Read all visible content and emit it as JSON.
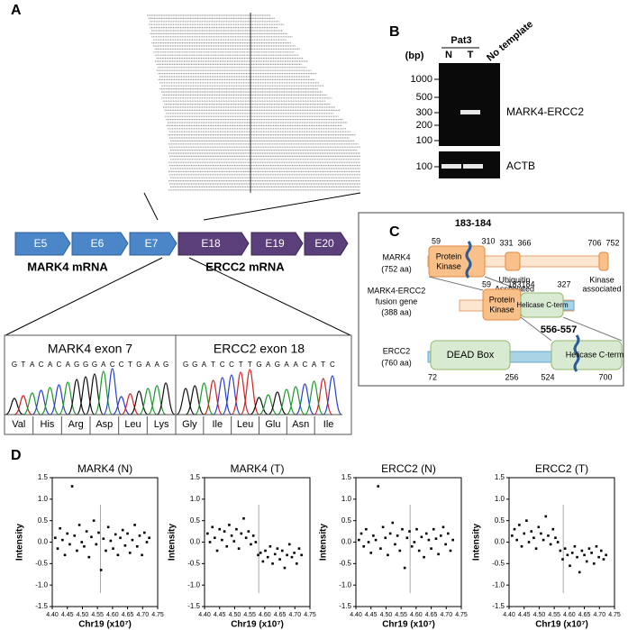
{
  "panel_a": {
    "label": "A",
    "mark4_exons": [
      "E5",
      "E6",
      "E7"
    ],
    "ercc2_exons": [
      "E18",
      "E19",
      "E20"
    ],
    "mark4_mrna": "MARK4 mRNA",
    "ercc2_mrna": "ERCC2 mRNA",
    "chromatogram": [
      {
        "title": "MARK4 exon 7",
        "bases": [
          "G",
          "T",
          "A",
          "C",
          "A",
          "C",
          "A",
          "G",
          "G",
          "G",
          "A",
          "C",
          "C",
          "T",
          "G",
          "A",
          "A",
          "G"
        ],
        "amino_acids": [
          "Val",
          "His",
          "Arg",
          "Asp",
          "Leu",
          "Lys"
        ]
      },
      {
        "title": "ERCC2 exon 18",
        "bases": [
          "G",
          "G",
          "A",
          "T",
          "C",
          "C",
          "T",
          "T",
          "G",
          "A",
          "G",
          "A",
          "A",
          "C",
          "A",
          "T",
          "C"
        ],
        "amino_acids": [
          "Gly",
          "Ile",
          "Leu",
          "Glu",
          "Asn",
          "Ile"
        ]
      }
    ]
  },
  "panel_b": {
    "label": "B",
    "sample": "Pat3",
    "lanes": [
      "N",
      "T",
      "No template"
    ],
    "unit": "(bp)",
    "markers": [
      "1000",
      "500",
      "300",
      "200",
      "100"
    ],
    "product": "MARK4-ERCC2",
    "control_marker": "100",
    "control": "ACTB"
  },
  "panel_c": {
    "label": "C",
    "mark4": {
      "name": "MARK4",
      "length": "(752 aa)",
      "positions": [
        "59",
        "183-184",
        "310",
        "331",
        "366",
        "706",
        "752"
      ],
      "domains": [
        [
          "Protein",
          "Kinase"
        ],
        [
          "Ubiquitin",
          "Associated"
        ],
        [
          "Kinase",
          "associated"
        ]
      ]
    },
    "fusion": {
      "name": [
        "MARK4-ERCC2",
        "fusion gene",
        "(388 aa)"
      ],
      "positions": [
        "59",
        "183",
        "184",
        "327"
      ],
      "domains": [
        [
          "Protein",
          "Kinase"
        ],
        [
          "Helicase C-term"
        ]
      ]
    },
    "ercc2": {
      "name": "ERCC2",
      "length": "(760 aa)",
      "positions": [
        "72",
        "256",
        "556-557",
        "524",
        "700"
      ],
      "domains": [
        [
          "DEAD Box"
        ],
        [
          "Helicase C-term"
        ]
      ]
    }
  },
  "panel_d": {
    "label": "D"
  },
  "chart_data": [
    {
      "type": "scatter",
      "title": "MARK4 (N)",
      "xlabel": "Chr19 (x10⁷)",
      "ylabel": "Intensity",
      "color": "#000000",
      "reference_line": 4.56,
      "xlim": [
        4.4,
        4.75
      ],
      "xticks": [
        {
          "value": 4.4,
          "label": "4.40"
        },
        4.45,
        {
          "value": 4.5,
          "label": "4.50"
        },
        4.55,
        {
          "value": 4.6,
          "label": "4.60"
        },
        4.65,
        {
          "value": 4.7,
          "label": "4.70"
        },
        4.75
      ],
      "ylim": [
        -1.5,
        1.5
      ],
      "yticks": [
        -1.5,
        {
          "value": -1,
          "label": "-1.0"
        },
        -0.5,
        {
          "value": 0,
          "label": "0.0"
        },
        0.5,
        {
          "value": 1,
          "label": "1.0"
        },
        1.5
      ],
      "x": [
        4.41,
        4.418,
        4.426,
        4.434,
        4.442,
        4.45,
        4.458,
        4.466,
        4.474,
        4.482,
        4.49,
        4.498,
        4.506,
        4.514,
        4.522,
        4.53,
        4.538,
        4.546,
        4.554,
        4.562,
        4.57,
        4.578,
        4.586,
        4.594,
        4.602,
        4.61,
        4.618,
        4.626,
        4.634,
        4.642,
        4.65,
        4.658,
        4.666,
        4.674,
        4.682,
        4.69,
        4.698,
        4.706,
        4.714,
        4.722
      ],
      "values": [
        0.1,
        -0.15,
        0.32,
        0.05,
        -0.3,
        0.2,
        -0.05,
        1.3,
        0.15,
        -0.2,
        0.4,
        0.0,
        -0.1,
        0.25,
        -0.35,
        0.12,
        0.5,
        -0.05,
        0.22,
        -0.65,
        0.08,
        -0.2,
        0.35,
        0.03,
        -0.15,
        0.18,
        -0.3,
        0.1,
        0.28,
        -0.08,
        0.2,
        -0.25,
        0.05,
        0.4,
        -0.1,
        0.15,
        -0.3,
        0.22,
        0.0,
        0.1
      ]
    },
    {
      "type": "scatter",
      "title": "MARK4 (T)",
      "xlabel": "Chr19 (x10⁷)",
      "ylabel": "Intensity",
      "color": "#000000",
      "reference_line": 4.58,
      "xlim": [
        4.4,
        4.75
      ],
      "xticks": [
        {
          "value": 4.4,
          "label": "4.40"
        },
        4.45,
        {
          "value": 4.5,
          "label": "4.50"
        },
        4.55,
        {
          "value": 4.6,
          "label": "4.60"
        },
        4.65,
        {
          "value": 4.7,
          "label": "4.70"
        },
        4.75
      ],
      "ylim": [
        -1.5,
        1.5
      ],
      "yticks": [
        -1.5,
        {
          "value": -1,
          "label": "-1.0"
        },
        -0.5,
        {
          "value": 0,
          "label": "0.0"
        },
        0.5,
        {
          "value": 1,
          "label": "1.0"
        },
        1.5
      ],
      "x": [
        4.41,
        4.418,
        4.426,
        4.434,
        4.442,
        4.45,
        4.458,
        4.466,
        4.474,
        4.482,
        4.49,
        4.498,
        4.506,
        4.514,
        4.522,
        4.53,
        4.538,
        4.546,
        4.554,
        4.562,
        4.57,
        4.578,
        4.586,
        4.594,
        4.602,
        4.61,
        4.618,
        4.626,
        4.634,
        4.642,
        4.65,
        4.658,
        4.666,
        4.674,
        4.682,
        4.69,
        4.698,
        4.706,
        4.714,
        4.722
      ],
      "values": [
        0.2,
        0.0,
        0.35,
        0.1,
        -0.2,
        0.3,
        0.05,
        0.25,
        -0.1,
        0.4,
        0.15,
        0.02,
        0.3,
        -0.15,
        0.2,
        0.55,
        0.1,
        0.25,
        -0.05,
        0.15,
        0.0,
        -0.3,
        -0.25,
        -0.45,
        -0.2,
        -0.35,
        -0.1,
        -0.5,
        -0.28,
        -0.15,
        -0.4,
        -0.2,
        -0.6,
        -0.3,
        -0.05,
        -0.35,
        -0.25,
        -0.5,
        -0.15,
        -0.3
      ]
    },
    {
      "type": "scatter",
      "title": "ERCC2 (N)",
      "xlabel": "Chr19 (x10⁷)",
      "ylabel": "Intensity",
      "color": "#000000",
      "reference_line": 4.58,
      "xlim": [
        4.4,
        4.75
      ],
      "xticks": [
        {
          "value": 4.4,
          "label": "4.40"
        },
        4.45,
        {
          "value": 4.5,
          "label": "4.50"
        },
        4.55,
        {
          "value": 4.6,
          "label": "4.60"
        },
        4.65,
        {
          "value": 4.7,
          "label": "4.70"
        },
        4.75
      ],
      "ylim": [
        -1.5,
        1.5
      ],
      "yticks": [
        -1.5,
        {
          "value": -1,
          "label": "-1.0"
        },
        -0.5,
        {
          "value": 0,
          "label": "0.0"
        },
        0.5,
        {
          "value": 1,
          "label": "1.0"
        },
        1.5
      ],
      "x": [
        4.41,
        4.418,
        4.426,
        4.434,
        4.442,
        4.45,
        4.458,
        4.466,
        4.474,
        4.482,
        4.49,
        4.498,
        4.506,
        4.514,
        4.522,
        4.53,
        4.538,
        4.546,
        4.554,
        4.562,
        4.57,
        4.578,
        4.586,
        4.594,
        4.602,
        4.61,
        4.618,
        4.626,
        4.634,
        4.642,
        4.65,
        4.658,
        4.666,
        4.674,
        4.682,
        4.69,
        4.698,
        4.706,
        4.714,
        4.722
      ],
      "values": [
        0.05,
        0.2,
        -0.1,
        0.3,
        0.0,
        -0.25,
        0.15,
        0.05,
        1.3,
        -0.15,
        0.35,
        0.1,
        -0.3,
        0.2,
        0.45,
        -0.05,
        0.15,
        -0.2,
        0.3,
        -0.6,
        0.1,
        0.25,
        -0.1,
        0.0,
        0.3,
        -0.2,
        0.12,
        -0.35,
        0.2,
        0.05,
        -0.15,
        0.3,
        0.08,
        -0.28,
        0.15,
        0.35,
        -0.05,
        0.2,
        -0.2,
        0.05
      ]
    },
    {
      "type": "scatter",
      "title": "ERCC2 (T)",
      "xlabel": "Chr19 (x10⁷)",
      "ylabel": "Intensity",
      "color": "#000000",
      "reference_line": 4.58,
      "xlim": [
        4.4,
        4.75
      ],
      "xticks": [
        {
          "value": 4.4,
          "label": "4.40"
        },
        4.45,
        {
          "value": 4.5,
          "label": "4.50"
        },
        4.55,
        {
          "value": 4.6,
          "label": "4.60"
        },
        4.65,
        {
          "value": 4.7,
          "label": "4.70"
        },
        4.75
      ],
      "ylim": [
        -1.5,
        1.5
      ],
      "yticks": [
        -1.5,
        {
          "value": -1,
          "label": "-1.0"
        },
        -0.5,
        {
          "value": 0,
          "label": "0.0"
        },
        0.5,
        {
          "value": 1,
          "label": "1.0"
        },
        1.5
      ],
      "x": [
        4.41,
        4.418,
        4.426,
        4.434,
        4.442,
        4.45,
        4.458,
        4.466,
        4.474,
        4.482,
        4.49,
        4.498,
        4.506,
        4.514,
        4.522,
        4.53,
        4.538,
        4.546,
        4.554,
        4.562,
        4.57,
        4.578,
        4.586,
        4.594,
        4.602,
        4.61,
        4.618,
        4.626,
        4.634,
        4.642,
        4.65,
        4.658,
        4.666,
        4.674,
        4.682,
        4.69,
        4.698,
        4.706,
        4.714,
        4.722
      ],
      "values": [
        0.15,
        0.3,
        0.05,
        0.4,
        -0.1,
        0.2,
        0.5,
        0.0,
        0.25,
        0.1,
        -0.15,
        0.35,
        0.2,
        0.05,
        0.6,
        0.15,
        -0.05,
        0.3,
        0.1,
        0.0,
        -0.2,
        -0.4,
        -0.15,
        -0.3,
        -0.55,
        -0.25,
        -0.1,
        -0.35,
        -0.7,
        -0.2,
        -0.3,
        -0.45,
        -0.15,
        -0.25,
        -0.5,
        -0.1,
        -0.35,
        -0.2,
        -0.4,
        -0.3
      ]
    }
  ]
}
